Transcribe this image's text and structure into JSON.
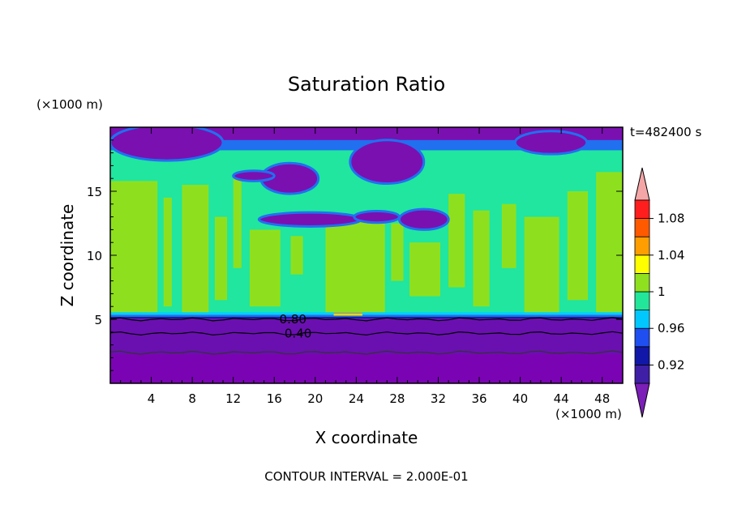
{
  "chart_data": {
    "type": "heatmap",
    "title": "Saturation Ratio",
    "xlabel": "X coordinate",
    "ylabel": "Z coordinate",
    "x_unit": "(×1000 m)",
    "y_unit": "(×1000 m)",
    "time_label": "t=482400 s",
    "footer": "CONTOUR INTERVAL = 2.000E-01",
    "xlim": [
      0,
      50
    ],
    "ylim": [
      0,
      20
    ],
    "x_ticks": [
      4,
      8,
      12,
      16,
      20,
      24,
      28,
      32,
      36,
      40,
      44,
      48
    ],
    "y_ticks": [
      5,
      10,
      15
    ],
    "contour_labels": [
      {
        "text": "0.80",
        "x": 16.5,
        "z": 5.0
      },
      {
        "text": "0.40",
        "x": 17.0,
        "z": 3.9
      }
    ],
    "colorbar": {
      "tick_labels": [
        "1.08",
        "1.04",
        "1",
        "0.96",
        "0.92"
      ],
      "tick_values": [
        1.08,
        1.04,
        1.0,
        0.96,
        0.92
      ],
      "levels": [
        0.9,
        0.92,
        0.94,
        0.96,
        0.98,
        1.0,
        1.02,
        1.04,
        1.06,
        1.08,
        1.1
      ],
      "colors": [
        "#3e1fa6",
        "#1118a8",
        "#1f4ff0",
        "#00c8ff",
        "#22e69a",
        "#8fe01e",
        "#ffff00",
        "#ff9e00",
        "#ff5a00",
        "#ff1e1e"
      ],
      "under_color": "#7b1fb8",
      "over_color": "#f4a6a6"
    },
    "colors": {
      "low_layer": "#7a04b3",
      "band_purple": "#6a10b0",
      "band_navy": "#1a1aa5",
      "band_blue": "#2070f0",
      "band_cyan": "#00d0ff",
      "mid_teal": "#20e6a0",
      "mid_green": "#8ee01e",
      "patch_yellow": "#ffff00",
      "patch_orange": "#ff9e00",
      "cloud_purple": "#7a10b0"
    }
  }
}
